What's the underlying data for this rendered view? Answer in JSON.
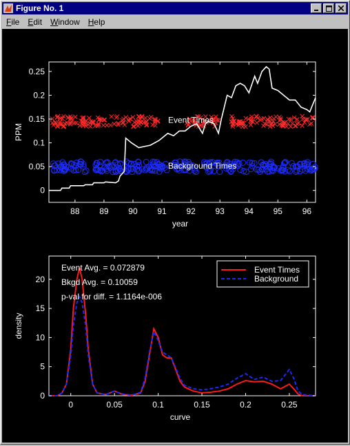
{
  "window": {
    "title": "Figure No. 1",
    "menu": [
      {
        "rest": "ile",
        "first": "F"
      },
      {
        "rest": "dit",
        "first": "E"
      },
      {
        "rest": "indow",
        "first": "W"
      },
      {
        "rest": "elp",
        "first": "H"
      }
    ],
    "buttons": [
      "minimize",
      "maximize",
      "close"
    ]
  },
  "chart_data": [
    {
      "type": "line",
      "xlabel": "year",
      "ylabel": "PPM",
      "xlim": [
        87.1,
        96.3
      ],
      "ylim": [
        -0.025,
        0.27
      ],
      "xticks": [
        88,
        89,
        90,
        91,
        92,
        93,
        94,
        95,
        96
      ],
      "yticks": [
        0,
        0.05,
        0.1,
        0.15,
        0.2,
        0.25
      ],
      "ytick_labels": [
        "0",
        "0.05",
        "0.1",
        "0.15",
        "0.2",
        "0.25"
      ],
      "annotations": [
        "Event Times",
        "Background Times"
      ],
      "series": [
        {
          "role": "curve",
          "color": "#ffffff",
          "x": [
            87.1,
            87.5,
            87.55,
            87.8,
            87.85,
            88.3,
            88.35,
            88.6,
            88.65,
            89.0,
            89.05,
            89.4,
            89.5,
            89.55,
            89.7,
            89.75,
            89.95,
            90.2,
            90.6,
            90.9,
            91.0,
            91.2,
            91.4,
            91.6,
            91.8,
            92.0,
            92.2,
            92.4,
            92.5,
            92.6,
            92.8,
            92.95,
            93.05,
            93.15,
            93.25,
            93.4,
            93.55,
            93.7,
            93.85,
            94.0,
            94.2,
            94.3,
            94.45,
            94.6,
            94.7,
            94.8,
            95.0,
            95.2,
            95.4,
            95.6,
            95.8,
            96.0,
            96.1,
            96.2,
            96.3
          ],
          "y": [
            0.0,
            0.0,
            0.005,
            0.005,
            0.01,
            0.01,
            0.012,
            0.012,
            0.016,
            0.016,
            0.018,
            0.016,
            0.02,
            0.03,
            0.04,
            0.11,
            0.1,
            0.09,
            0.095,
            0.105,
            0.11,
            0.12,
            0.115,
            0.125,
            0.125,
            0.135,
            0.14,
            0.12,
            0.14,
            0.145,
            0.14,
            0.12,
            0.15,
            0.175,
            0.2,
            0.195,
            0.22,
            0.225,
            0.22,
            0.205,
            0.24,
            0.225,
            0.25,
            0.26,
            0.255,
            0.215,
            0.21,
            0.2,
            0.19,
            0.19,
            0.175,
            0.17,
            0.165,
            0.18,
            0.195
          ]
        },
        {
          "role": "event-markers",
          "color": "#ff2a2a",
          "marker": "x",
          "y": 0.145,
          "x_ranges": [
            [
              87.2,
              89.6
            ],
            [
              89.6,
              90.9
            ],
            [
              91.8,
              93.0
            ],
            [
              93.4,
              96.3
            ]
          ]
        },
        {
          "role": "background-markers",
          "color": "#1c2cff",
          "marker": "o",
          "y": 0.05,
          "x_ranges": [
            [
              87.2,
              88.4
            ],
            [
              88.6,
              89.8
            ],
            [
              89.8,
              91.2
            ],
            [
              91.4,
              92.2
            ],
            [
              92.4,
              93.0
            ],
            [
              93.2,
              94.9
            ],
            [
              95.0,
              96.3
            ]
          ]
        }
      ]
    },
    {
      "type": "line",
      "xlabel": "curve",
      "ylabel": "density",
      "xlim": [
        -0.025,
        0.28
      ],
      "ylim": [
        0,
        24
      ],
      "xticks": [
        0,
        0.05,
        0.1,
        0.15,
        0.2,
        0.25
      ],
      "xtick_labels": [
        "0",
        "0.05",
        "0.1",
        "0.15",
        "0.2",
        "0.25"
      ],
      "yticks": [
        0,
        5,
        10,
        15,
        20
      ],
      "annotations": [
        "Event Avg. = 0.072879",
        "Bkgd Avg. = 0.10059",
        "p-val for diff. = 1.1164e-006"
      ],
      "legend": "top-right",
      "series": [
        {
          "name": "Event Times",
          "color": "#ff1a1a",
          "dash": "solid",
          "x": [
            -0.025,
            -0.015,
            -0.01,
            -0.005,
            0.0,
            0.003,
            0.007,
            0.01,
            0.013,
            0.017,
            0.02,
            0.025,
            0.03,
            0.04,
            0.05,
            0.055,
            0.06,
            0.07,
            0.08,
            0.085,
            0.09,
            0.095,
            0.1,
            0.105,
            0.11,
            0.115,
            0.12,
            0.125,
            0.13,
            0.14,
            0.15,
            0.16,
            0.17,
            0.18,
            0.19,
            0.2,
            0.21,
            0.22,
            0.23,
            0.24,
            0.25,
            0.255,
            0.26,
            0.265,
            0.28
          ],
          "y": [
            0,
            0,
            0.5,
            2,
            8,
            15,
            20,
            22,
            20,
            14,
            8,
            2,
            0.5,
            0.2,
            0.8,
            0.5,
            0.2,
            0.1,
            0.5,
            2.5,
            7,
            11.5,
            10,
            7,
            6.5,
            6.5,
            4.5,
            2.5,
            1.5,
            0.8,
            0.5,
            0.6,
            0.8,
            1.2,
            2.0,
            2.6,
            2.4,
            2.5,
            2.0,
            1.2,
            2.0,
            1.2,
            0.3,
            0,
            0
          ]
        },
        {
          "name": "Background",
          "color": "#1a2aff",
          "dash": "dashed",
          "x": [
            -0.025,
            -0.015,
            -0.01,
            -0.005,
            0.0,
            0.003,
            0.007,
            0.01,
            0.013,
            0.017,
            0.02,
            0.025,
            0.03,
            0.04,
            0.05,
            0.055,
            0.06,
            0.07,
            0.08,
            0.085,
            0.09,
            0.095,
            0.1,
            0.105,
            0.11,
            0.115,
            0.12,
            0.125,
            0.13,
            0.14,
            0.15,
            0.16,
            0.17,
            0.18,
            0.19,
            0.2,
            0.21,
            0.22,
            0.23,
            0.24,
            0.25,
            0.255,
            0.26,
            0.265,
            0.28
          ],
          "y": [
            0,
            0,
            0.5,
            2,
            7,
            12,
            16,
            17,
            16,
            12,
            7,
            2,
            0.5,
            0.2,
            0.8,
            0.5,
            0.3,
            0.1,
            0.6,
            3,
            7.5,
            11,
            9.5,
            7.5,
            7,
            6.5,
            4.8,
            3,
            1.8,
            1.2,
            1.0,
            1.2,
            1.5,
            2.0,
            3.0,
            3.8,
            2.8,
            3.2,
            2.5,
            2.6,
            4.5,
            3.0,
            0.8,
            0.2,
            0
          ]
        }
      ]
    }
  ]
}
